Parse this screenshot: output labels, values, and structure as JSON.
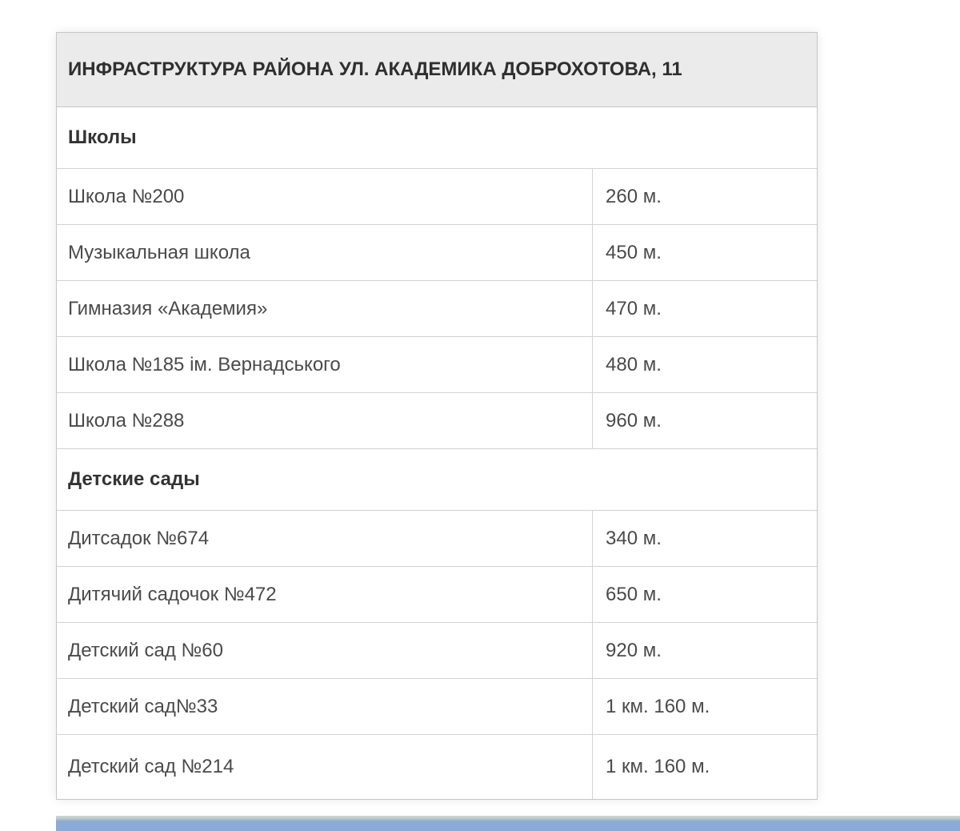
{
  "page_background": "#ffffff",
  "table": {
    "title": "ИНФРАСТРУКТУРА РАЙОНА УЛ. АКАДЕМИКА ДОБРОХОТОВА, 11",
    "sections": [
      {
        "id": "schools",
        "label": "Школы",
        "rows": [
          {
            "name": "Школа №200",
            "distance": "260 м."
          },
          {
            "name": "Музыкальная школа",
            "distance": "450 м."
          },
          {
            "name": "Гимназия «Академия»",
            "distance": "470 м."
          },
          {
            "name": "Школа №185 ім. Вернадського",
            "distance": "480 м."
          },
          {
            "name": "Школа №288",
            "distance": "960 м."
          }
        ]
      },
      {
        "id": "kindergartens",
        "label": "Детские сады",
        "rows": [
          {
            "name": "Дитсадок №674",
            "distance": "340 м."
          },
          {
            "name": "Дитячий садочок №472",
            "distance": "650 м."
          },
          {
            "name": "Детский сад №60",
            "distance": "920 м."
          },
          {
            "name": "Детский сад№33",
            "distance": "1 км. 160 м."
          },
          {
            "name": "Детский сад №214",
            "distance": "1 км. 160 м."
          }
        ]
      }
    ]
  },
  "colors": {
    "header_background": "#ebebeb",
    "border_outer": "#c6c6c6",
    "border_inner": "#d2d2d2",
    "title_text": "#2f2f2f",
    "section_text": "#333333",
    "row_text": "#4a4a4a",
    "footer_bar": "#8aabd6",
    "footer_bar_top_edge": "#c9d4ca"
  }
}
